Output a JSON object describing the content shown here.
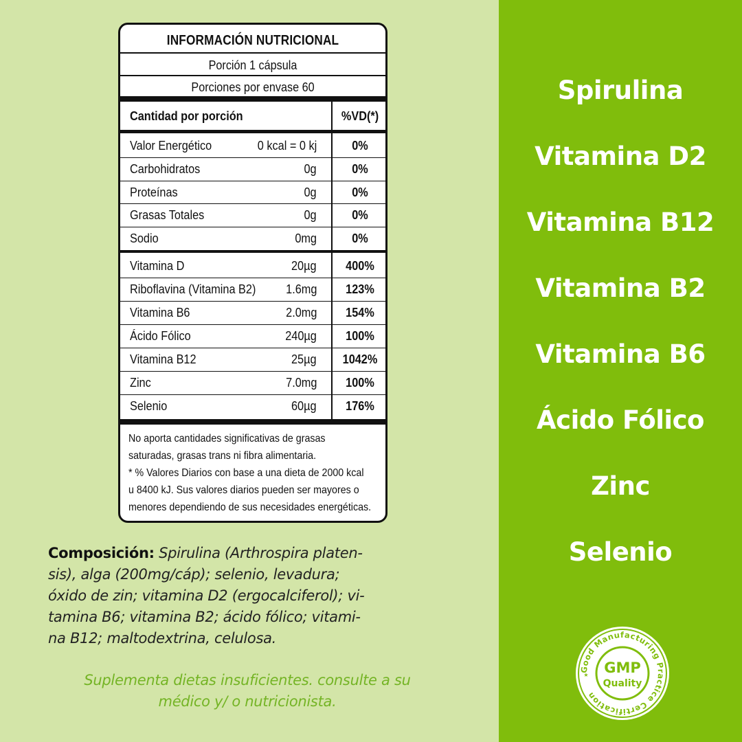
{
  "nutrition": {
    "title": "INFORMACIÓN NUTRICIONAL",
    "serving": "Porción 1 cápsula",
    "servings_per_container": "Porciones por envase 60",
    "header_name": "Cantidad por porción",
    "header_vd": "%VD(*)",
    "rows": [
      {
        "name": "Valor Energético",
        "amount": "0 kcal = 0 kj",
        "vd": "0%"
      },
      {
        "name": "Carbohidratos",
        "amount": "0g",
        "vd": "0%"
      },
      {
        "name": "Proteínas",
        "amount": "0g",
        "vd": "0%"
      },
      {
        "name": "Grasas Totales",
        "amount": "0g",
        "vd": "0%"
      },
      {
        "name": "Sodio",
        "amount": "0mg",
        "vd": "0%"
      },
      {
        "name": "Vitamina D",
        "amount": "20µg",
        "vd": "400%"
      },
      {
        "name": "Riboflavina (Vitamina B2)",
        "amount": "1.6mg",
        "vd": "123%"
      },
      {
        "name": "Vitamina B6",
        "amount": "2.0mg",
        "vd": "154%"
      },
      {
        "name": "Ácido Fólico",
        "amount": "240µg",
        "vd": "100%"
      },
      {
        "name": "Vitamina B12",
        "amount": "25µg",
        "vd": "1042%"
      },
      {
        "name": "Zinc",
        "amount": "7.0mg",
        "vd": "100%"
      },
      {
        "name": "Selenio",
        "amount": "60µg",
        "vd": "176%"
      }
    ],
    "note_lines": [
      "No aporta cantidades significativas de grasas",
      "saturadas, grasas trans ni fibra alimentaria.",
      "* % Valores Diarios con base a una dieta de 2000 kcal",
      "u 8400 kJ. Sus valores diarios pueden ser mayores o",
      "menores dependiendo de sus necesidades energéticas."
    ]
  },
  "composition": {
    "label": "Composición:",
    "lines": [
      " Spirulina (Arthrospira platen-",
      "sis), alga (200mg/cáp); selenio, levadura;",
      "óxido de zin; vitamina D2 (ergocalciferol); vi-",
      "tamina B6; vitamina B2; ácido fólico; vitami-",
      "na B12; maltodextrina, celulosa."
    ]
  },
  "advice": {
    "line1": "Suplementa dietas insuficientes. consulte a su",
    "line2": "médico y/ o nutricionista."
  },
  "benefits": [
    "Spirulina",
    "Vitamina D2",
    "Vitamina B12",
    "Vitamina B2",
    "Vitamina B6",
    "Ácido Fólico",
    "Zinc",
    "Selenio"
  ],
  "badge": {
    "center_top": "GMP",
    "center_bottom": "Quality",
    "ring_text": "Good Manufacturing Practice Certification"
  },
  "colors": {
    "left_background": "#d3e5a8",
    "right_panel": "#80bd0c",
    "advice_text": "#74b425"
  }
}
